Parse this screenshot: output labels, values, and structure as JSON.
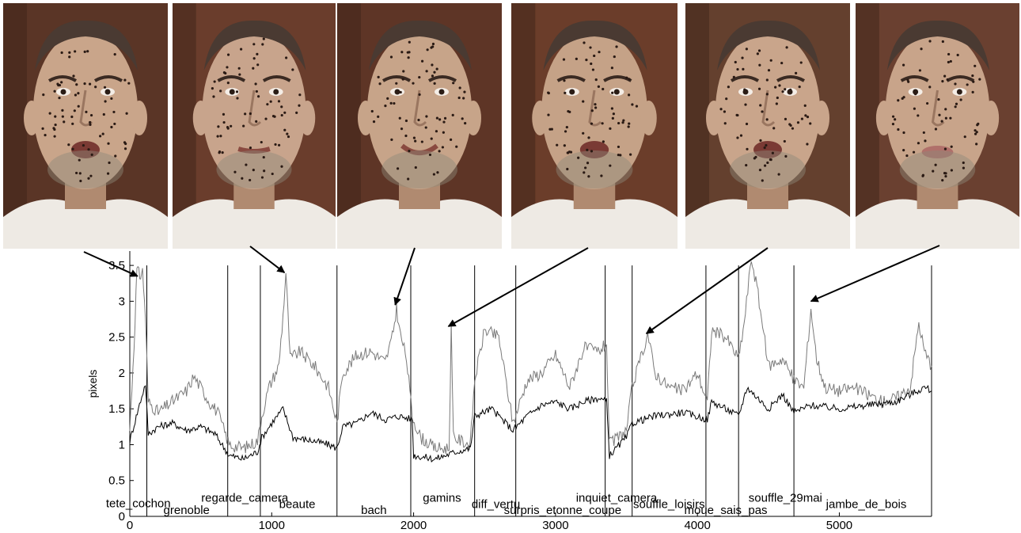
{
  "figure": {
    "face_icon": "face-photo",
    "faces": [
      {
        "name": "frame-tete-cochon",
        "skin": "#c9a58a",
        "bg": "#5a3526",
        "mouth": "open"
      },
      {
        "name": "frame-regarde-camera",
        "skin": "#c8a48c",
        "bg": "#6a3d2c",
        "mouth": "closed"
      },
      {
        "name": "frame-bach",
        "skin": "#c7a489",
        "bg": "#5e3526",
        "mouth": "smile"
      },
      {
        "name": "frame-gamins",
        "skin": "#c5a287",
        "bg": "#6b3d2a",
        "mouth": "open"
      },
      {
        "name": "frame-souffle-loisirs",
        "skin": "#c9a58b",
        "bg": "#64402e",
        "mouth": "open"
      },
      {
        "name": "frame-jambe-de-bois",
        "skin": "#c8a48a",
        "bg": "#6a4030",
        "mouth": "pout"
      }
    ]
  },
  "chart_data": {
    "type": "line",
    "ylabel": "pixels",
    "xlabel": "",
    "xlim": [
      0,
      5650
    ],
    "ylim": [
      0,
      3.7
    ],
    "xticks": [
      0,
      1000,
      2000,
      3000,
      4000,
      5000
    ],
    "xtick_labels": [
      "0",
      "1000",
      "2000",
      "3000",
      "4000",
      "5000"
    ],
    "yticks": [
      0,
      0.5,
      1,
      1.5,
      2,
      2.5,
      3,
      3.5
    ],
    "ytick_labels": [
      "0",
      "0.5",
      "1",
      "1.5",
      "2",
      "2.5",
      "3",
      "3.5"
    ],
    "grid": false,
    "series": [
      {
        "color": "#7a7a7a",
        "points": [
          [
            0,
            1.2
          ],
          [
            30,
            2.4
          ],
          [
            50,
            3.45
          ],
          [
            70,
            3.35
          ],
          [
            90,
            3.42
          ],
          [
            110,
            2.8
          ],
          [
            130,
            1.6
          ],
          [
            200,
            1.45
          ],
          [
            300,
            1.6
          ],
          [
            400,
            1.75
          ],
          [
            450,
            1.95
          ],
          [
            500,
            1.8
          ],
          [
            560,
            1.6
          ],
          [
            620,
            1.45
          ],
          [
            700,
            1.0
          ],
          [
            800,
            0.95
          ],
          [
            900,
            1.05
          ],
          [
            930,
            1.4
          ],
          [
            980,
            1.8
          ],
          [
            1050,
            2.1
          ],
          [
            1080,
            2.8
          ],
          [
            1100,
            3.4
          ],
          [
            1130,
            2.2
          ],
          [
            1200,
            2.3
          ],
          [
            1300,
            2.1
          ],
          [
            1400,
            1.8
          ],
          [
            1460,
            1.3
          ],
          [
            1500,
            2.0
          ],
          [
            1600,
            2.25
          ],
          [
            1700,
            2.3
          ],
          [
            1800,
            2.15
          ],
          [
            1850,
            2.5
          ],
          [
            1880,
            2.9
          ],
          [
            1900,
            2.6
          ],
          [
            1950,
            2.2
          ],
          [
            1990,
            1.4
          ],
          [
            2050,
            1.1
          ],
          [
            2150,
            0.95
          ],
          [
            2250,
            0.95
          ],
          [
            2265,
            2.65
          ],
          [
            2280,
            1.1
          ],
          [
            2400,
            1.0
          ],
          [
            2430,
            1.9
          ],
          [
            2500,
            2.6
          ],
          [
            2600,
            2.5
          ],
          [
            2700,
            1.3
          ],
          [
            2800,
            1.9
          ],
          [
            2900,
            2.0
          ],
          [
            3000,
            2.25
          ],
          [
            3100,
            1.8
          ],
          [
            3200,
            2.35
          ],
          [
            3300,
            2.3
          ],
          [
            3360,
            2.4
          ],
          [
            3380,
            1.0
          ],
          [
            3500,
            1.2
          ],
          [
            3540,
            1.8
          ],
          [
            3600,
            2.2
          ],
          [
            3650,
            2.55
          ],
          [
            3700,
            2.0
          ],
          [
            3800,
            1.8
          ],
          [
            3900,
            1.75
          ],
          [
            4000,
            2.0
          ],
          [
            4070,
            1.6
          ],
          [
            4100,
            2.6
          ],
          [
            4200,
            2.5
          ],
          [
            4290,
            2.2
          ],
          [
            4330,
            2.7
          ],
          [
            4380,
            3.6
          ],
          [
            4420,
            3.2
          ],
          [
            4500,
            2.1
          ],
          [
            4600,
            2.2
          ],
          [
            4680,
            1.9
          ],
          [
            4750,
            1.8
          ],
          [
            4800,
            2.9
          ],
          [
            4840,
            2.2
          ],
          [
            4900,
            1.8
          ],
          [
            5000,
            1.75
          ],
          [
            5100,
            1.8
          ],
          [
            5200,
            1.7
          ],
          [
            5300,
            1.6
          ],
          [
            5400,
            1.65
          ],
          [
            5500,
            1.8
          ],
          [
            5560,
            2.7
          ],
          [
            5600,
            2.3
          ],
          [
            5650,
            2.1
          ]
        ]
      },
      {
        "color": "#000000",
        "points": [
          [
            0,
            1.05
          ],
          [
            60,
            1.5
          ],
          [
            110,
            1.85
          ],
          [
            130,
            1.15
          ],
          [
            200,
            1.25
          ],
          [
            300,
            1.3
          ],
          [
            400,
            1.2
          ],
          [
            500,
            1.25
          ],
          [
            600,
            1.15
          ],
          [
            700,
            0.85
          ],
          [
            800,
            0.8
          ],
          [
            900,
            0.9
          ],
          [
            930,
            1.1
          ],
          [
            1000,
            1.3
          ],
          [
            1080,
            1.5
          ],
          [
            1150,
            1.1
          ],
          [
            1300,
            1.05
          ],
          [
            1400,
            1.0
          ],
          [
            1460,
            0.95
          ],
          [
            1500,
            1.25
          ],
          [
            1600,
            1.3
          ],
          [
            1700,
            1.45
          ],
          [
            1800,
            1.35
          ],
          [
            1900,
            1.4
          ],
          [
            1990,
            1.35
          ],
          [
            2000,
            0.85
          ],
          [
            2150,
            0.8
          ],
          [
            2300,
            0.9
          ],
          [
            2400,
            0.95
          ],
          [
            2430,
            1.4
          ],
          [
            2550,
            1.5
          ],
          [
            2700,
            1.2
          ],
          [
            2800,
            1.4
          ],
          [
            2900,
            1.55
          ],
          [
            3000,
            1.6
          ],
          [
            3100,
            1.5
          ],
          [
            3200,
            1.6
          ],
          [
            3300,
            1.65
          ],
          [
            3360,
            1.6
          ],
          [
            3380,
            0.85
          ],
          [
            3500,
            1.1
          ],
          [
            3540,
            1.3
          ],
          [
            3700,
            1.4
          ],
          [
            3900,
            1.45
          ],
          [
            4070,
            1.35
          ],
          [
            4100,
            1.6
          ],
          [
            4200,
            1.5
          ],
          [
            4290,
            1.4
          ],
          [
            4350,
            1.8
          ],
          [
            4500,
            1.5
          ],
          [
            4600,
            1.7
          ],
          [
            4680,
            1.45
          ],
          [
            4800,
            1.55
          ],
          [
            5000,
            1.5
          ],
          [
            5200,
            1.55
          ],
          [
            5400,
            1.6
          ],
          [
            5600,
            1.8
          ],
          [
            5650,
            1.75
          ]
        ]
      }
    ],
    "boundaries": [
      120,
      690,
      920,
      1460,
      1980,
      2430,
      2720,
      3350,
      3540,
      4060,
      4290,
      4680,
      5650
    ],
    "segments": [
      {
        "label": "tete_cochon",
        "x": 60,
        "y": 0.17
      },
      {
        "label": "grenoble",
        "x": 400,
        "y": 0.08
      },
      {
        "label": "regarde_camera",
        "x": 810,
        "y": 0.25
      },
      {
        "label": "beaute",
        "x": 1180,
        "y": 0.16
      },
      {
        "label": "bach",
        "x": 1720,
        "y": 0.08
      },
      {
        "label": "gamins",
        "x": 2200,
        "y": 0.25
      },
      {
        "label": "diff_vertu",
        "x": 2580,
        "y": 0.16
      },
      {
        "label": "surpris_etonne_coupe",
        "x": 3050,
        "y": 0.08
      },
      {
        "label": "inquiet_camera",
        "x": 3430,
        "y": 0.25
      },
      {
        "label": "souffle_loisirs",
        "x": 3800,
        "y": 0.16
      },
      {
        "label": "moue_sais_pas",
        "x": 4200,
        "y": 0.08
      },
      {
        "label": "souffle_29mai",
        "x": 4620,
        "y": 0.25
      },
      {
        "label": "jambe_de_bois",
        "x": 5190,
        "y": 0.16
      }
    ],
    "annotations": [
      {
        "from_face": 0,
        "x": 55,
        "y": 3.35
      },
      {
        "from_face": 1,
        "x": 1090,
        "y": 3.4
      },
      {
        "from_face": 2,
        "x": 1870,
        "y": 2.95
      },
      {
        "from_face": 3,
        "x": 2245,
        "y": 2.65
      },
      {
        "from_face": 4,
        "x": 3640,
        "y": 2.55
      },
      {
        "from_face": 5,
        "x": 4800,
        "y": 3.0
      }
    ]
  }
}
